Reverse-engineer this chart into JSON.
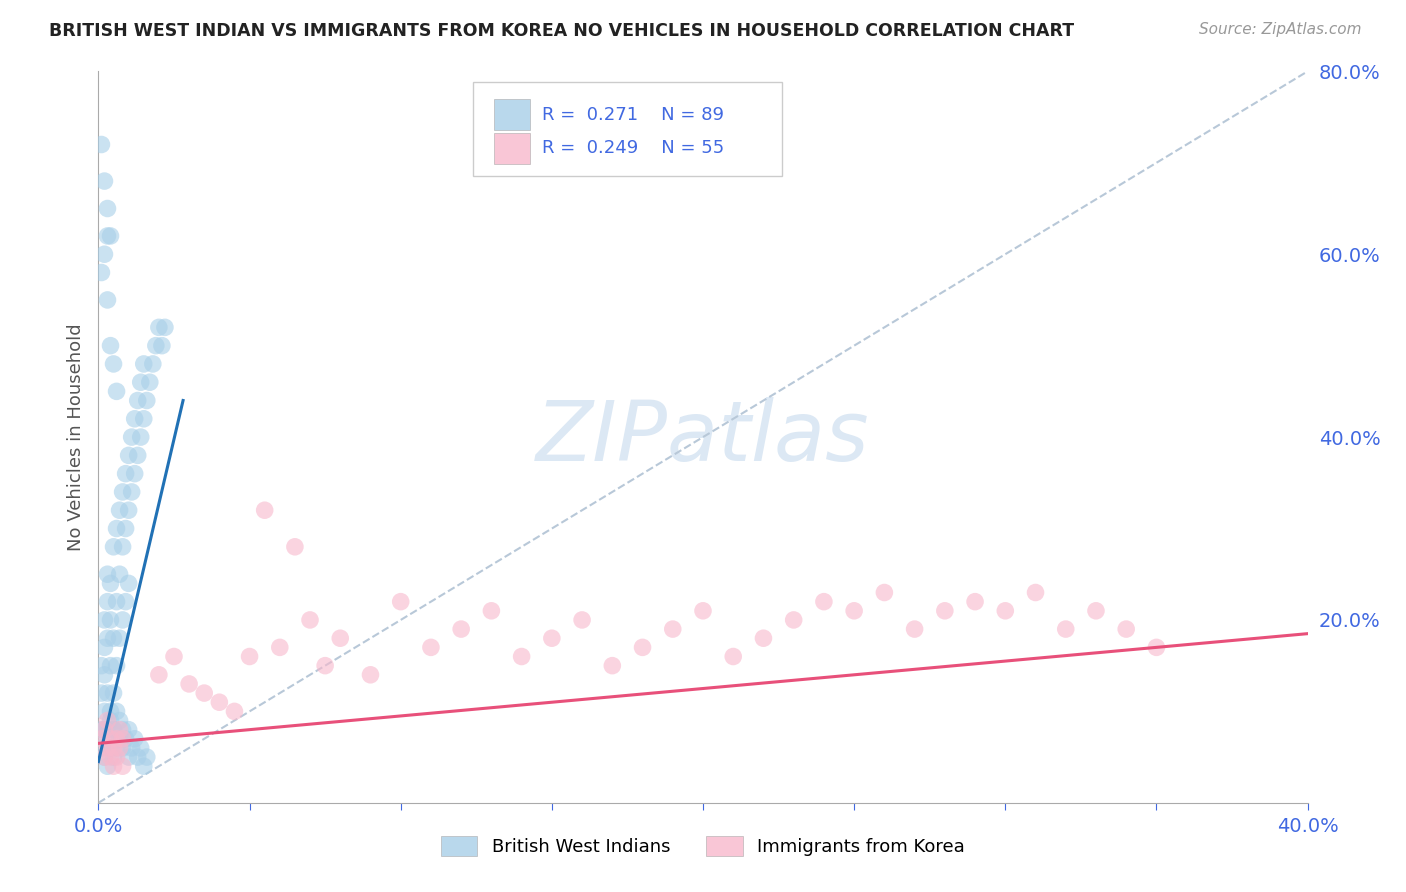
{
  "title": "BRITISH WEST INDIAN VS IMMIGRANTS FROM KOREA NO VEHICLES IN HOUSEHOLD CORRELATION CHART",
  "source_text": "Source: ZipAtlas.com",
  "ylabel": "No Vehicles in Household",
  "legend_label_1": "British West Indians",
  "legend_label_2": "Immigrants from Korea",
  "r1": 0.271,
  "n1": 89,
  "r2": 0.249,
  "n2": 55,
  "color_blue": "#a8cfe8",
  "color_pink": "#f8b8cc",
  "line_color_blue": "#2171b5",
  "line_color_pink": "#e8507a",
  "axis_tick_color": "#4169E1",
  "grid_color": "#c8d4e8",
  "watermark_color": "#dce8f4",
  "bg_color": "#ffffff",
  "xlim": [
    0.0,
    0.4
  ],
  "ylim": [
    0.0,
    0.8
  ],
  "blue_line_x": [
    0.0,
    0.028
  ],
  "blue_line_y": [
    0.045,
    0.44
  ],
  "pink_line_x": [
    0.0,
    0.4
  ],
  "pink_line_y": [
    0.065,
    0.185
  ],
  "diag_line_x": [
    0.0,
    0.4
  ],
  "diag_line_y": [
    0.0,
    0.8
  ],
  "blue_x": [
    0.001,
    0.001,
    0.001,
    0.002,
    0.002,
    0.002,
    0.002,
    0.002,
    0.003,
    0.003,
    0.003,
    0.003,
    0.003,
    0.004,
    0.004,
    0.004,
    0.004,
    0.004,
    0.005,
    0.005,
    0.005,
    0.005,
    0.006,
    0.006,
    0.006,
    0.007,
    0.007,
    0.007,
    0.008,
    0.008,
    0.008,
    0.009,
    0.009,
    0.009,
    0.01,
    0.01,
    0.01,
    0.011,
    0.011,
    0.012,
    0.012,
    0.013,
    0.013,
    0.014,
    0.014,
    0.015,
    0.015,
    0.016,
    0.017,
    0.018,
    0.019,
    0.02,
    0.021,
    0.022,
    0.001,
    0.002,
    0.002,
    0.003,
    0.003,
    0.004,
    0.004,
    0.005,
    0.005,
    0.006,
    0.006,
    0.007,
    0.007,
    0.008,
    0.008,
    0.009,
    0.01,
    0.01,
    0.011,
    0.012,
    0.013,
    0.014,
    0.015,
    0.016,
    0.001,
    0.002,
    0.003,
    0.004,
    0.001,
    0.002,
    0.003,
    0.003,
    0.004,
    0.005,
    0.006
  ],
  "blue_y": [
    0.12,
    0.15,
    0.08,
    0.14,
    0.17,
    0.1,
    0.2,
    0.08,
    0.18,
    0.22,
    0.12,
    0.25,
    0.08,
    0.2,
    0.24,
    0.15,
    0.1,
    0.06,
    0.28,
    0.18,
    0.12,
    0.08,
    0.3,
    0.22,
    0.15,
    0.32,
    0.25,
    0.18,
    0.34,
    0.28,
    0.2,
    0.36,
    0.3,
    0.22,
    0.38,
    0.32,
    0.24,
    0.4,
    0.34,
    0.42,
    0.36,
    0.44,
    0.38,
    0.46,
    0.4,
    0.48,
    0.42,
    0.44,
    0.46,
    0.48,
    0.5,
    0.52,
    0.5,
    0.52,
    0.06,
    0.05,
    0.08,
    0.04,
    0.07,
    0.06,
    0.09,
    0.05,
    0.08,
    0.06,
    0.1,
    0.07,
    0.09,
    0.06,
    0.08,
    0.07,
    0.05,
    0.08,
    0.06,
    0.07,
    0.05,
    0.06,
    0.04,
    0.05,
    0.72,
    0.68,
    0.65,
    0.62,
    0.58,
    0.6,
    0.62,
    0.55,
    0.5,
    0.48,
    0.45
  ],
  "pink_x": [
    0.001,
    0.002,
    0.002,
    0.003,
    0.003,
    0.004,
    0.004,
    0.005,
    0.005,
    0.006,
    0.006,
    0.007,
    0.007,
    0.008,
    0.008,
    0.05,
    0.06,
    0.07,
    0.075,
    0.08,
    0.09,
    0.1,
    0.11,
    0.12,
    0.13,
    0.14,
    0.15,
    0.16,
    0.17,
    0.18,
    0.19,
    0.2,
    0.21,
    0.22,
    0.23,
    0.24,
    0.25,
    0.26,
    0.27,
    0.28,
    0.29,
    0.3,
    0.31,
    0.32,
    0.33,
    0.34,
    0.02,
    0.025,
    0.03,
    0.035,
    0.04,
    0.045,
    0.055,
    0.065,
    0.35
  ],
  "pink_y": [
    0.07,
    0.05,
    0.08,
    0.06,
    0.09,
    0.05,
    0.07,
    0.06,
    0.04,
    0.07,
    0.05,
    0.08,
    0.06,
    0.04,
    0.07,
    0.16,
    0.17,
    0.2,
    0.15,
    0.18,
    0.14,
    0.22,
    0.17,
    0.19,
    0.21,
    0.16,
    0.18,
    0.2,
    0.15,
    0.17,
    0.19,
    0.21,
    0.16,
    0.18,
    0.2,
    0.22,
    0.21,
    0.23,
    0.19,
    0.21,
    0.22,
    0.21,
    0.23,
    0.19,
    0.21,
    0.19,
    0.14,
    0.16,
    0.13,
    0.12,
    0.11,
    0.1,
    0.32,
    0.28,
    0.17
  ]
}
